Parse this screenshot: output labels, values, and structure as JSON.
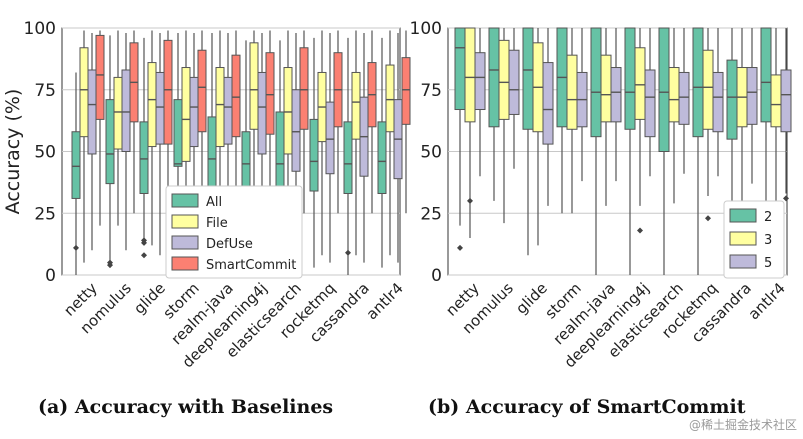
{
  "chart_data": [
    {
      "id": "a",
      "type": "boxplot",
      "caption": "(a) Accuracy with Baselines",
      "ylabel": "Accuracy (%)",
      "ylim": [
        0,
        100
      ],
      "yticks": [
        0,
        25,
        50,
        75,
        100
      ],
      "grid": "horizontal",
      "legend_position": "bottom-center",
      "categories": [
        "netty",
        "nomulus",
        "glide",
        "storm",
        "realm-java",
        "deeplearning4j",
        "elasticsearch",
        "rocketmq",
        "cassandra",
        "antlr4"
      ],
      "series": [
        {
          "name": "All",
          "color": "#66c2a5",
          "boxes": [
            {
              "lo": 0,
              "q1": 31,
              "med": 44,
              "q3": 58,
              "hi": 82,
              "outliers": [
                11
              ]
            },
            {
              "lo": 3,
              "q1": 37,
              "med": 49,
              "q3": 71,
              "hi": 97,
              "outliers": [
                4,
                5
              ]
            },
            {
              "lo": 15,
              "q1": 33,
              "med": 47,
              "q3": 62,
              "hi": 96,
              "outliers": [
                8,
                13,
                14
              ]
            },
            {
              "lo": 0,
              "q1": 44,
              "med": 45,
              "q3": 71,
              "hi": 98,
              "outliers": []
            },
            {
              "lo": 0,
              "q1": 36,
              "med": 47,
              "q3": 64,
              "hi": 98,
              "outliers": []
            },
            {
              "lo": 0,
              "q1": 34,
              "med": 45,
              "q3": 58,
              "hi": 95,
              "outliers": []
            },
            {
              "lo": 5,
              "q1": 34,
              "med": 45,
              "q3": 66,
              "hi": 95,
              "outliers": []
            },
            {
              "lo": 3,
              "q1": 34,
              "med": 46,
              "q3": 63,
              "hi": 96,
              "outliers": []
            },
            {
              "lo": 0,
              "q1": 33,
              "med": 45,
              "q3": 62,
              "hi": 96,
              "outliers": [
                9
              ]
            },
            {
              "lo": 3,
              "q1": 33,
              "med": 46,
              "q3": 62,
              "hi": 96,
              "outliers": []
            }
          ]
        },
        {
          "name": "File",
          "color": "#ffffa0",
          "boxes": [
            {
              "lo": 5,
              "q1": 56,
              "med": 75,
              "q3": 92,
              "hi": 99,
              "outliers": []
            },
            {
              "lo": 20,
              "q1": 51,
              "med": 66,
              "q3": 80,
              "hi": 99,
              "outliers": []
            },
            {
              "lo": 12,
              "q1": 52,
              "med": 71,
              "q3": 86,
              "hi": 99,
              "outliers": []
            },
            {
              "lo": 10,
              "q1": 46,
              "med": 63,
              "q3": 84,
              "hi": 99,
              "outliers": []
            },
            {
              "lo": 8,
              "q1": 52,
              "med": 69,
              "q3": 84,
              "hi": 99,
              "outliers": []
            },
            {
              "lo": 5,
              "q1": 59,
              "med": 75,
              "q3": 94,
              "hi": 99,
              "outliers": []
            },
            {
              "lo": 10,
              "q1": 49,
              "med": 66,
              "q3": 84,
              "hi": 99,
              "outliers": []
            },
            {
              "lo": 8,
              "q1": 54,
              "med": 68,
              "q3": 82,
              "hi": 99,
              "outliers": []
            },
            {
              "lo": 8,
              "q1": 55,
              "med": 70,
              "q3": 82,
              "hi": 99,
              "outliers": []
            },
            {
              "lo": 8,
              "q1": 58,
              "med": 71,
              "q3": 85,
              "hi": 99,
              "outliers": []
            }
          ]
        },
        {
          "name": "DefUse",
          "color": "#bebada",
          "boxes": [
            {
              "lo": 10,
              "q1": 49,
              "med": 69,
              "q3": 83,
              "hi": 98,
              "outliers": []
            },
            {
              "lo": 10,
              "q1": 50,
              "med": 66,
              "q3": 83,
              "hi": 98,
              "outliers": []
            },
            {
              "lo": 8,
              "q1": 53,
              "med": 68,
              "q3": 82,
              "hi": 98,
              "outliers": []
            },
            {
              "lo": 8,
              "q1": 52,
              "med": 68,
              "q3": 80,
              "hi": 98,
              "outliers": []
            },
            {
              "lo": 8,
              "q1": 53,
              "med": 68,
              "q3": 80,
              "hi": 98,
              "outliers": []
            },
            {
              "lo": 10,
              "q1": 49,
              "med": 68,
              "q3": 82,
              "hi": 98,
              "outliers": []
            },
            {
              "lo": 5,
              "q1": 42,
              "med": 58,
              "q3": 75,
              "hi": 98,
              "outliers": []
            },
            {
              "lo": 5,
              "q1": 41,
              "med": 55,
              "q3": 70,
              "hi": 98,
              "outliers": []
            },
            {
              "lo": 5,
              "q1": 40,
              "med": 56,
              "q3": 72,
              "hi": 98,
              "outliers": []
            },
            {
              "lo": 5,
              "q1": 39,
              "med": 55,
              "q3": 71,
              "hi": 98,
              "outliers": []
            }
          ]
        },
        {
          "name": "SmartCommit",
          "color": "#fb8072",
          "boxes": [
            {
              "lo": 20,
              "q1": 63,
              "med": 81,
              "q3": 97,
              "hi": 99,
              "outliers": []
            },
            {
              "lo": 25,
              "q1": 62,
              "med": 78,
              "q3": 94,
              "hi": 99,
              "outliers": []
            },
            {
              "lo": 20,
              "q1": 53,
              "med": 75,
              "q3": 95,
              "hi": 99,
              "outliers": []
            },
            {
              "lo": 25,
              "q1": 58,
              "med": 76,
              "q3": 91,
              "hi": 99,
              "outliers": []
            },
            {
              "lo": 25,
              "q1": 56,
              "med": 72,
              "q3": 89,
              "hi": 99,
              "outliers": []
            },
            {
              "lo": 25,
              "q1": 57,
              "med": 73,
              "q3": 90,
              "hi": 99,
              "outliers": []
            },
            {
              "lo": 25,
              "q1": 59,
              "med": 75,
              "q3": 92,
              "hi": 99,
              "outliers": []
            },
            {
              "lo": 25,
              "q1": 60,
              "med": 75,
              "q3": 90,
              "hi": 99,
              "outliers": []
            },
            {
              "lo": 25,
              "q1": 60,
              "med": 73,
              "q3": 86,
              "hi": 99,
              "outliers": []
            },
            {
              "lo": 25,
              "q1": 61,
              "med": 75,
              "q3": 88,
              "hi": 99,
              "outliers": []
            }
          ]
        }
      ]
    },
    {
      "id": "b",
      "type": "boxplot",
      "caption": "(b) Accuracy of SmartCommit",
      "caption_note": "caption partially obscured by watermark in original",
      "ylim": [
        0,
        100
      ],
      "yticks": [
        0,
        25,
        50,
        75,
        100
      ],
      "grid": "horizontal",
      "legend_position": "bottom-right",
      "categories": [
        "netty",
        "nomulus",
        "glide",
        "storm",
        "realm-java",
        "deeplearning4j",
        "elasticsearch",
        "rocketmq",
        "cassandra",
        "antlr4"
      ],
      "series": [
        {
          "name": "2",
          "color": "#66c2a5",
          "boxes": [
            {
              "lo": 20,
              "q1": 67,
              "med": 92,
              "q3": 100,
              "hi": 100,
              "outliers": [
                11
              ]
            },
            {
              "lo": 30,
              "q1": 60,
              "med": 83,
              "q3": 100,
              "hi": 100,
              "outliers": []
            },
            {
              "lo": 8,
              "q1": 59,
              "med": 83,
              "q3": 100,
              "hi": 100,
              "outliers": []
            },
            {
              "lo": 25,
              "q1": 60,
              "med": 80,
              "q3": 100,
              "hi": 100,
              "outliers": []
            },
            {
              "lo": 0,
              "q1": 56,
              "med": 74,
              "q3": 100,
              "hi": 100,
              "outliers": []
            },
            {
              "lo": 0,
              "q1": 59,
              "med": 74,
              "q3": 100,
              "hi": 100,
              "outliers": []
            },
            {
              "lo": 0,
              "q1": 50,
              "med": 74,
              "q3": 100,
              "hi": 100,
              "outliers": []
            },
            {
              "lo": 0,
              "q1": 56,
              "med": 76,
              "q3": 100,
              "hi": 100,
              "outliers": []
            },
            {
              "lo": 0,
              "q1": 55,
              "med": 72,
              "q3": 87,
              "hi": 100,
              "outliers": []
            },
            {
              "lo": 0,
              "q1": 62,
              "med": 78,
              "q3": 100,
              "hi": 100,
              "outliers": []
            }
          ]
        },
        {
          "name": "3",
          "color": "#ffffa0",
          "boxes": [
            {
              "lo": 15,
              "q1": 62,
              "med": 80,
              "q3": 100,
              "hi": 100,
              "outliers": [
                30
              ]
            },
            {
              "lo": 21,
              "q1": 63,
              "med": 78,
              "q3": 95,
              "hi": 100,
              "outliers": []
            },
            {
              "lo": 12,
              "q1": 58,
              "med": 76,
              "q3": 94,
              "hi": 100,
              "outliers": []
            },
            {
              "lo": 25,
              "q1": 59,
              "med": 71,
              "q3": 89,
              "hi": 100,
              "outliers": []
            },
            {
              "lo": 28,
              "q1": 62,
              "med": 73,
              "q3": 89,
              "hi": 100,
              "outliers": []
            },
            {
              "lo": 28,
              "q1": 63,
              "med": 77,
              "q3": 92,
              "hi": 100,
              "outliers": [
                18
              ]
            },
            {
              "lo": 29,
              "q1": 62,
              "med": 71,
              "q3": 84,
              "hi": 100,
              "outliers": []
            },
            {
              "lo": 32,
              "q1": 59,
              "med": 76,
              "q3": 91,
              "hi": 100,
              "outliers": [
                23
              ]
            },
            {
              "lo": 30,
              "q1": 60,
              "med": 72,
              "q3": 84,
              "hi": 100,
              "outliers": []
            },
            {
              "lo": 29,
              "q1": 60,
              "med": 69,
              "q3": 81,
              "hi": 100,
              "outliers": []
            }
          ]
        },
        {
          "name": "5",
          "color": "#bebada",
          "boxes": [
            {
              "lo": 40,
              "q1": 67,
              "med": 80,
              "q3": 90,
              "hi": 100,
              "outliers": []
            },
            {
              "lo": 43,
              "q1": 65,
              "med": 75,
              "q3": 91,
              "hi": 100,
              "outliers": []
            },
            {
              "lo": 28,
              "q1": 53,
              "med": 67,
              "q3": 86,
              "hi": 100,
              "outliers": []
            },
            {
              "lo": 38,
              "q1": 60,
              "med": 71,
              "q3": 82,
              "hi": 100,
              "outliers": []
            },
            {
              "lo": 38,
              "q1": 62,
              "med": 74,
              "q3": 84,
              "hi": 100,
              "outliers": []
            },
            {
              "lo": 40,
              "q1": 56,
              "med": 72,
              "q3": 83,
              "hi": 100,
              "outliers": []
            },
            {
              "lo": 41,
              "q1": 61,
              "med": 72,
              "q3": 82,
              "hi": 100,
              "outliers": []
            },
            {
              "lo": 40,
              "q1": 58,
              "med": 72,
              "q3": 82,
              "hi": 100,
              "outliers": []
            },
            {
              "lo": 37,
              "q1": 61,
              "med": 74,
              "q3": 84,
              "hi": 100,
              "outliers": []
            },
            {
              "lo": 33,
              "q1": 58,
              "med": 73,
              "q3": 83,
              "hi": 100,
              "outliers": [
                31
              ]
            }
          ]
        }
      ]
    }
  ],
  "watermark": "@稀土掘金技术社区"
}
